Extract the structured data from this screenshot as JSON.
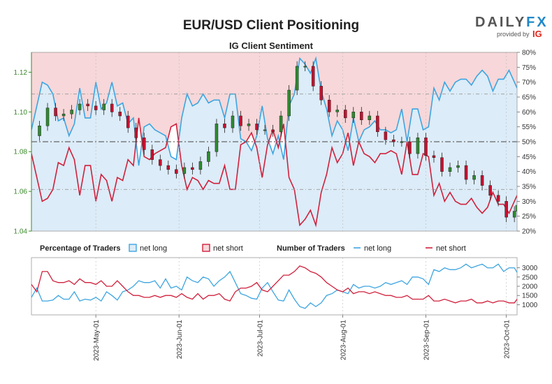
{
  "header": {
    "title": "EUR/USD Client Positioning",
    "subtitle": "IG Client Sentiment"
  },
  "brand": {
    "name": "DAILY",
    "name_fx": "FX",
    "provided_by": "provided by",
    "provider": "IG"
  },
  "legend": {
    "pct_heading": "Percentage of Traders",
    "num_heading": "Number of Traders",
    "net_long": "net long",
    "net_short": "net short"
  },
  "colors": {
    "long": "#3da5e0",
    "short": "#d0203c",
    "long_fill": "#dcecf8",
    "short_fill": "#f7d7d9",
    "candle_up": "#2e8b2e",
    "candle_down": "#c8102e",
    "price_axis": "#3a8a2a"
  },
  "chart_data": {
    "type": "line",
    "title": "EUR/USD Client Positioning",
    "subtitle": "IG Client Sentiment",
    "x_range": [
      "2023-04-07",
      "2023-10-05"
    ],
    "x_ticks": [
      "2023-May-01",
      "2023-Jun-01",
      "2023-Jul-01",
      "2023-Aug-01",
      "2023-Sep-01",
      "2023-Oct-01"
    ],
    "price_axis": {
      "ylim": [
        1.04,
        1.13
      ],
      "ticks": [
        "1.04",
        "1.06",
        "1.08",
        "1.10",
        "1.12"
      ]
    },
    "percent_axis": {
      "ylim": [
        20,
        80
      ],
      "ticks": [
        "20%",
        "25%",
        "30%",
        "35%",
        "40%",
        "45%",
        "50%",
        "55%",
        "60%",
        "65%",
        "70%",
        "75%",
        "80%"
      ]
    },
    "count_axis": {
      "ylim": [
        600,
        3400
      ],
      "ticks": [
        "1000",
        "1500",
        "2000",
        "2500",
        "3000"
      ]
    },
    "reference_lines_percent": [
      34,
      50,
      66
    ],
    "series": [
      {
        "name": "net long",
        "axis": "percent",
        "x": [
          "2023-04-07",
          "2023-04-09",
          "2023-04-11",
          "2023-04-13",
          "2023-04-15",
          "2023-04-17",
          "2023-04-19",
          "2023-04-21",
          "2023-04-23",
          "2023-04-25",
          "2023-04-27",
          "2023-04-29",
          "2023-05-01",
          "2023-05-03",
          "2023-05-05",
          "2023-05-07",
          "2023-05-09",
          "2023-05-11",
          "2023-05-13",
          "2023-05-15",
          "2023-05-17",
          "2023-05-19",
          "2023-05-21",
          "2023-05-23",
          "2023-05-25",
          "2023-05-27",
          "2023-05-29",
          "2023-05-31",
          "2023-06-02",
          "2023-06-04",
          "2023-06-06",
          "2023-06-08",
          "2023-06-10",
          "2023-06-12",
          "2023-06-14",
          "2023-06-16",
          "2023-06-18",
          "2023-06-20",
          "2023-06-22",
          "2023-06-24",
          "2023-06-26",
          "2023-06-28",
          "2023-06-30",
          "2023-07-02",
          "2023-07-04",
          "2023-07-06",
          "2023-07-08",
          "2023-07-10",
          "2023-07-12",
          "2023-07-14",
          "2023-07-16",
          "2023-07-18",
          "2023-07-20",
          "2023-07-22",
          "2023-07-24",
          "2023-07-26",
          "2023-07-28",
          "2023-07-30",
          "2023-08-01",
          "2023-08-03",
          "2023-08-05",
          "2023-08-07",
          "2023-08-09",
          "2023-08-11",
          "2023-08-13",
          "2023-08-15",
          "2023-08-17",
          "2023-08-19",
          "2023-08-21",
          "2023-08-23",
          "2023-08-25",
          "2023-08-27",
          "2023-08-29",
          "2023-08-31",
          "2023-09-02",
          "2023-09-04",
          "2023-09-06",
          "2023-09-08",
          "2023-09-10",
          "2023-09-12",
          "2023-09-14",
          "2023-09-16",
          "2023-09-18",
          "2023-09-20",
          "2023-09-22",
          "2023-09-24",
          "2023-09-26",
          "2023-09-28",
          "2023-09-30",
          "2023-10-02",
          "2023-10-04",
          "2023-10-05"
        ],
        "values": [
          54,
          62,
          70,
          69,
          66,
          57,
          58,
          52,
          56,
          68,
          58,
          58,
          70,
          61,
          63,
          70,
          62,
          63,
          56,
          58,
          42,
          55,
          56,
          54,
          53,
          52,
          45,
          44,
          58,
          66,
          62,
          63,
          66,
          63,
          64,
          64,
          58,
          66,
          66,
          51,
          50,
          47,
          52,
          62,
          51,
          46,
          52,
          44,
          62,
          66,
          78,
          76,
          73,
          78,
          67,
          61,
          52,
          57,
          54,
          47,
          58,
          50,
          54,
          55,
          57,
          54,
          54,
          53,
          54,
          61,
          50,
          61,
          61,
          54,
          55,
          68,
          64,
          70,
          67,
          70,
          71,
          71,
          69,
          72,
          74,
          72,
          67,
          71,
          71,
          74,
          70,
          68
        ]
      },
      {
        "name": "net short",
        "axis": "percent",
        "x": [
          "2023-04-07",
          "2023-04-09",
          "2023-04-11",
          "2023-04-13",
          "2023-04-15",
          "2023-04-17",
          "2023-04-19",
          "2023-04-21",
          "2023-04-23",
          "2023-04-25",
          "2023-04-27",
          "2023-04-29",
          "2023-05-01",
          "2023-05-03",
          "2023-05-05",
          "2023-05-07",
          "2023-05-09",
          "2023-05-11",
          "2023-05-13",
          "2023-05-15",
          "2023-05-17",
          "2023-05-19",
          "2023-05-21",
          "2023-05-23",
          "2023-05-25",
          "2023-05-27",
          "2023-05-29",
          "2023-05-31",
          "2023-06-02",
          "2023-06-04",
          "2023-06-06",
          "2023-06-08",
          "2023-06-10",
          "2023-06-12",
          "2023-06-14",
          "2023-06-16",
          "2023-06-18",
          "2023-06-20",
          "2023-06-22",
          "2023-06-24",
          "2023-06-26",
          "2023-06-28",
          "2023-06-30",
          "2023-07-02",
          "2023-07-04",
          "2023-07-06",
          "2023-07-08",
          "2023-07-10",
          "2023-07-12",
          "2023-07-14",
          "2023-07-16",
          "2023-07-18",
          "2023-07-20",
          "2023-07-22",
          "2023-07-24",
          "2023-07-26",
          "2023-07-28",
          "2023-07-30",
          "2023-08-01",
          "2023-08-03",
          "2023-08-05",
          "2023-08-07",
          "2023-08-09",
          "2023-08-11",
          "2023-08-13",
          "2023-08-15",
          "2023-08-17",
          "2023-08-19",
          "2023-08-21",
          "2023-08-23",
          "2023-08-25",
          "2023-08-27",
          "2023-08-29",
          "2023-08-31",
          "2023-09-02",
          "2023-09-04",
          "2023-09-06",
          "2023-09-08",
          "2023-09-10",
          "2023-09-12",
          "2023-09-14",
          "2023-09-16",
          "2023-09-18",
          "2023-09-20",
          "2023-09-22",
          "2023-09-24",
          "2023-09-26",
          "2023-09-28",
          "2023-09-30",
          "2023-10-02",
          "2023-10-04",
          "2023-10-05"
        ],
        "values": [
          46,
          38,
          30,
          31,
          34,
          43,
          42,
          48,
          44,
          32,
          42,
          42,
          30,
          39,
          37,
          30,
          38,
          37,
          44,
          42,
          58,
          45,
          44,
          46,
          47,
          48,
          55,
          56,
          42,
          34,
          38,
          37,
          34,
          37,
          36,
          36,
          42,
          34,
          34,
          49,
          50,
          53,
          48,
          38,
          49,
          54,
          48,
          56,
          38,
          34,
          22,
          24,
          27,
          22,
          33,
          39,
          48,
          43,
          46,
          53,
          42,
          50,
          46,
          45,
          43,
          46,
          46,
          47,
          46,
          39,
          50,
          39,
          39,
          46,
          45,
          32,
          36,
          30,
          33,
          30,
          29,
          29,
          31,
          28,
          26,
          28,
          33,
          29,
          29,
          26,
          30,
          32
        ]
      },
      {
        "name": "net long",
        "axis": "count",
        "x": [
          "2023-04-07",
          "2023-04-09",
          "2023-04-11",
          "2023-04-13",
          "2023-04-15",
          "2023-04-17",
          "2023-04-19",
          "2023-04-21",
          "2023-04-23",
          "2023-04-25",
          "2023-04-27",
          "2023-04-29",
          "2023-05-01",
          "2023-05-03",
          "2023-05-05",
          "2023-05-07",
          "2023-05-09",
          "2023-05-11",
          "2023-05-13",
          "2023-05-15",
          "2023-05-17",
          "2023-05-19",
          "2023-05-21",
          "2023-05-23",
          "2023-05-25",
          "2023-05-27",
          "2023-05-29",
          "2023-05-31",
          "2023-06-02",
          "2023-06-04",
          "2023-06-06",
          "2023-06-08",
          "2023-06-10",
          "2023-06-12",
          "2023-06-14",
          "2023-06-16",
          "2023-06-18",
          "2023-06-20",
          "2023-06-22",
          "2023-06-24",
          "2023-06-26",
          "2023-06-28",
          "2023-06-30",
          "2023-07-02",
          "2023-07-04",
          "2023-07-06",
          "2023-07-08",
          "2023-07-10",
          "2023-07-12",
          "2023-07-14",
          "2023-07-16",
          "2023-07-18",
          "2023-07-20",
          "2023-07-22",
          "2023-07-24",
          "2023-07-26",
          "2023-07-28",
          "2023-07-30",
          "2023-08-01",
          "2023-08-03",
          "2023-08-05",
          "2023-08-07",
          "2023-08-09",
          "2023-08-11",
          "2023-08-13",
          "2023-08-15",
          "2023-08-17",
          "2023-08-19",
          "2023-08-21",
          "2023-08-23",
          "2023-08-25",
          "2023-08-27",
          "2023-08-29",
          "2023-08-31",
          "2023-09-02",
          "2023-09-04",
          "2023-09-06",
          "2023-09-08",
          "2023-09-10",
          "2023-09-12",
          "2023-09-14",
          "2023-09-16",
          "2023-09-18",
          "2023-09-20",
          "2023-09-22",
          "2023-09-24",
          "2023-09-26",
          "2023-09-28",
          "2023-09-30",
          "2023-10-02",
          "2023-10-04",
          "2023-10-05"
        ],
        "values": [
          1400,
          1900,
          1200,
          1200,
          1250,
          1500,
          1300,
          1300,
          1700,
          1200,
          1300,
          1250,
          1400,
          1200,
          1700,
          1500,
          1250,
          1700,
          1800,
          2000,
          2300,
          2200,
          2200,
          2300,
          1900,
          2400,
          1900,
          2000,
          1800,
          2500,
          2300,
          2200,
          2500,
          2400,
          2000,
          2300,
          2500,
          2800,
          2200,
          1600,
          1500,
          1350,
          1300,
          1900,
          2200,
          1700,
          1250,
          1200,
          1800,
          1300,
          900,
          800,
          1100,
          900,
          1100,
          1500,
          1600,
          1800,
          1700,
          1600,
          2100,
          1900,
          2000,
          2000,
          1900,
          2000,
          2200,
          2100,
          2200,
          2300,
          2100,
          2500,
          2500,
          2400,
          2100,
          2900,
          2800,
          3000,
          2900,
          2900,
          3000,
          3200,
          3000,
          3100,
          3200,
          3000,
          3000,
          3200,
          2800,
          3000,
          3000,
          2750
        ]
      },
      {
        "name": "net short",
        "axis": "count",
        "x": [
          "2023-04-07",
          "2023-04-09",
          "2023-04-11",
          "2023-04-13",
          "2023-04-15",
          "2023-04-17",
          "2023-04-19",
          "2023-04-21",
          "2023-04-23",
          "2023-04-25",
          "2023-04-27",
          "2023-04-29",
          "2023-05-01",
          "2023-05-03",
          "2023-05-05",
          "2023-05-07",
          "2023-05-09",
          "2023-05-11",
          "2023-05-13",
          "2023-05-15",
          "2023-05-17",
          "2023-05-19",
          "2023-05-21",
          "2023-05-23",
          "2023-05-25",
          "2023-05-27",
          "2023-05-29",
          "2023-05-31",
          "2023-06-02",
          "2023-06-04",
          "2023-06-06",
          "2023-06-08",
          "2023-06-10",
          "2023-06-12",
          "2023-06-14",
          "2023-06-16",
          "2023-06-18",
          "2023-06-20",
          "2023-06-22",
          "2023-06-24",
          "2023-06-26",
          "2023-06-28",
          "2023-06-30",
          "2023-07-02",
          "2023-07-04",
          "2023-07-06",
          "2023-07-08",
          "2023-07-10",
          "2023-07-12",
          "2023-07-14",
          "2023-07-16",
          "2023-07-18",
          "2023-07-20",
          "2023-07-22",
          "2023-07-24",
          "2023-07-26",
          "2023-07-28",
          "2023-07-30",
          "2023-08-01",
          "2023-08-03",
          "2023-08-05",
          "2023-08-07",
          "2023-08-09",
          "2023-08-11",
          "2023-08-13",
          "2023-08-15",
          "2023-08-17",
          "2023-08-19",
          "2023-08-21",
          "2023-08-23",
          "2023-08-25",
          "2023-08-27",
          "2023-08-29",
          "2023-08-31",
          "2023-09-02",
          "2023-09-04",
          "2023-09-06",
          "2023-09-08",
          "2023-09-10",
          "2023-09-12",
          "2023-09-14",
          "2023-09-16",
          "2023-09-18",
          "2023-09-20",
          "2023-09-22",
          "2023-09-24",
          "2023-09-26",
          "2023-09-28",
          "2023-09-30",
          "2023-10-02",
          "2023-10-04",
          "2023-10-05"
        ],
        "values": [
          2100,
          1700,
          2800,
          2800,
          2300,
          2200,
          2200,
          2300,
          2100,
          2400,
          2200,
          2200,
          2100,
          2300,
          2000,
          2000,
          2300,
          2000,
          1700,
          1500,
          1500,
          1400,
          1400,
          1500,
          1400,
          1500,
          1500,
          1400,
          1600,
          1400,
          1300,
          1600,
          1300,
          1500,
          1500,
          1600,
          1300,
          1200,
          1700,
          1900,
          1900,
          2000,
          2200,
          1800,
          1700,
          2000,
          2300,
          2600,
          2600,
          2800,
          3100,
          3000,
          2800,
          2700,
          2500,
          2200,
          2000,
          1800,
          1700,
          1900,
          1600,
          1700,
          1700,
          1600,
          1700,
          1600,
          1500,
          1500,
          1400,
          1400,
          1500,
          1300,
          1300,
          1300,
          1500,
          1200,
          1200,
          1300,
          1200,
          1100,
          1200,
          1200,
          1300,
          1100,
          1100,
          1200,
          1100,
          1200,
          1200,
          1100,
          1100,
          1300
        ]
      },
      {
        "name": "EUR/USD",
        "axis": "price",
        "type": "line",
        "x": [
          "2023-04-07",
          "2023-04-10",
          "2023-04-13",
          "2023-04-16",
          "2023-04-19",
          "2023-04-22",
          "2023-04-25",
          "2023-04-28",
          "2023-05-01",
          "2023-05-04",
          "2023-05-07",
          "2023-05-10",
          "2023-05-13",
          "2023-05-16",
          "2023-05-19",
          "2023-05-22",
          "2023-05-25",
          "2023-05-28",
          "2023-05-31",
          "2023-06-03",
          "2023-06-06",
          "2023-06-09",
          "2023-06-12",
          "2023-06-15",
          "2023-06-18",
          "2023-06-21",
          "2023-06-24",
          "2023-06-27",
          "2023-06-30",
          "2023-07-03",
          "2023-07-06",
          "2023-07-09",
          "2023-07-12",
          "2023-07-15",
          "2023-07-18",
          "2023-07-21",
          "2023-07-24",
          "2023-07-27",
          "2023-07-30",
          "2023-08-02",
          "2023-08-05",
          "2023-08-08",
          "2023-08-11",
          "2023-08-14",
          "2023-08-17",
          "2023-08-20",
          "2023-08-23",
          "2023-08-26",
          "2023-08-29",
          "2023-09-01",
          "2023-09-04",
          "2023-09-07",
          "2023-09-10",
          "2023-09-13",
          "2023-09-16",
          "2023-09-19",
          "2023-09-22",
          "2023-09-25",
          "2023-09-28",
          "2023-10-01",
          "2023-10-04",
          "2023-10-05"
        ],
        "values": [
          1.088,
          1.093,
          1.102,
          1.098,
          1.099,
          1.101,
          1.104,
          1.103,
          1.101,
          1.104,
          1.1,
          1.098,
          1.092,
          1.087,
          1.081,
          1.076,
          1.073,
          1.071,
          1.069,
          1.072,
          1.071,
          1.075,
          1.08,
          1.094,
          1.092,
          1.098,
          1.093,
          1.094,
          1.091,
          1.091,
          1.09,
          1.098,
          1.111,
          1.123,
          1.123,
          1.113,
          1.106,
          1.1,
          1.101,
          1.097,
          1.1,
          1.096,
          1.098,
          1.09,
          1.086,
          1.085,
          1.085,
          1.079,
          1.087,
          1.078,
          1.077,
          1.07,
          1.072,
          1.073,
          1.066,
          1.068,
          1.063,
          1.058,
          1.055,
          1.047,
          1.05,
          1.053
        ]
      }
    ]
  }
}
